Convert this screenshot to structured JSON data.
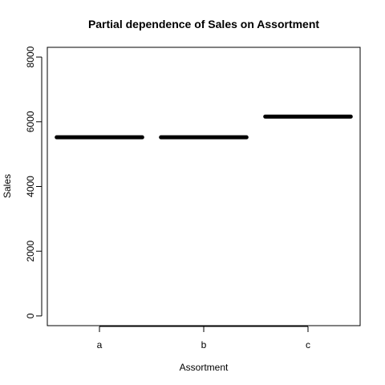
{
  "chart_data": {
    "type": "bar",
    "title": "Partial dependence of Sales on Assortment",
    "xlabel": "Assortment",
    "ylabel": "Sales",
    "categories": [
      "a",
      "b",
      "c"
    ],
    "values": [
      5520,
      5520,
      6160
    ],
    "ylim": [
      -300,
      8300
    ],
    "yticks": [
      "0",
      "2000",
      "4000",
      "6000",
      "8000"
    ],
    "grid": false,
    "colors": {
      "line": "#000000",
      "axis": "#000000",
      "background": "#ffffff"
    }
  }
}
